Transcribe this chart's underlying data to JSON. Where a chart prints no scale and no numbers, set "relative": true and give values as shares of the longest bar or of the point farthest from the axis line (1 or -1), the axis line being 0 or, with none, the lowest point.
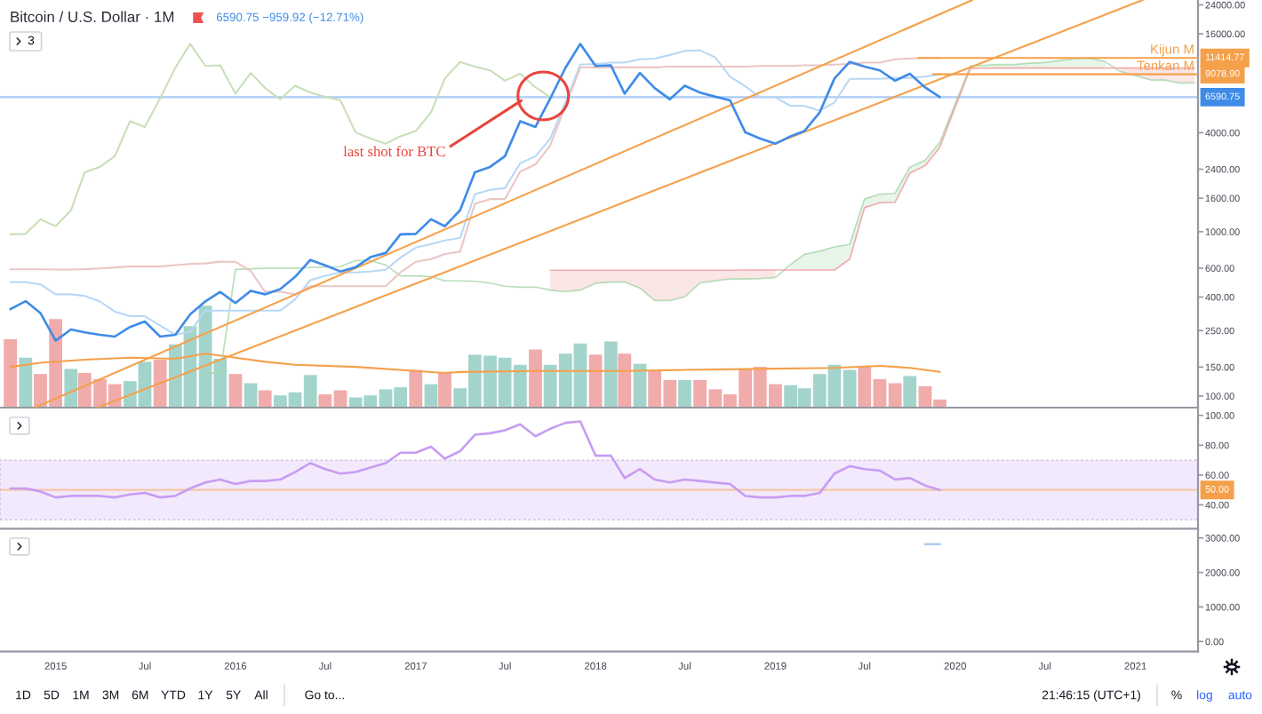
{
  "chart_data": [
    {
      "type": "line",
      "title": "Bitcoin / U.S. Dollar · 1M",
      "subtitle": "6590.75 −959.92 (−12.71%)",
      "annotations": [
        "3",
        {
          "text": "last shot for BTC",
          "x": "2017-08-03",
          "y": 6270
        }
      ],
      "log": true,
      "xlim": [
        "2014-09-10",
        "2021-05-08"
      ],
      "ylim": [
        85,
        25700
      ],
      "yticks": [
        {
          "value": 100,
          "label": "100.00"
        },
        {
          "value": 150,
          "label": "150.00"
        },
        {
          "value": 250,
          "label": "250.00"
        },
        {
          "value": 400,
          "label": "400.00"
        },
        {
          "value": 600,
          "label": "600.00"
        },
        {
          "value": 1000,
          "label": "1000.00"
        },
        {
          "value": 1600,
          "label": "1600.00"
        },
        {
          "value": 2400,
          "label": "2400.00"
        },
        {
          "value": 4000,
          "label": "4000.00"
        },
        {
          "value": 16000,
          "label": "16000.00"
        },
        {
          "value": 24000,
          "label": "24000.00"
        }
      ],
      "tick_labels": "y",
      "legend": "top right",
      "ref_lines": [
        {
          "axis": "y",
          "value": 6590.75,
          "label": "6590.75",
          "color": "#3f8be8"
        }
      ],
      "x": [
        "2014-10",
        "2014-11",
        "2014-12",
        "2015-01",
        "2015-02",
        "2015-03",
        "2015-04",
        "2015-05",
        "2015-06",
        "2015-07",
        "2015-08",
        "2015-09",
        "2015-10",
        "2015-11",
        "2015-12",
        "2016-01",
        "2016-02",
        "2016-03",
        "2016-04",
        "2016-05",
        "2016-06",
        "2016-07",
        "2016-08",
        "2016-09",
        "2016-10",
        "2016-11",
        "2016-12",
        "2017-01",
        "2017-02",
        "2017-03",
        "2017-04",
        "2017-05",
        "2017-06",
        "2017-07",
        "2017-08",
        "2017-09",
        "2017-10",
        "2017-11",
        "2017-12",
        "2018-01",
        "2018-02",
        "2018-03",
        "2018-04",
        "2018-05",
        "2018-06",
        "2018-07",
        "2018-08",
        "2018-09",
        "2018-10",
        "2018-11",
        "2018-12",
        "2019-01",
        "2019-02",
        "2019-03",
        "2019-04",
        "2019-05",
        "2019-06",
        "2019-07",
        "2019-08",
        "2019-09",
        "2019-10",
        "2019-11",
        "2019-12"
      ],
      "series": [
        {
          "color": "#3f8be8",
          "values": [
            338,
            378,
            320,
            217,
            254,
            244,
            236,
            230,
            263,
            284,
            230,
            236,
            314,
            377,
            430,
            368,
            437,
            416,
            448,
            531,
            673,
            624,
            573,
            608,
            700,
            742,
            964,
            970,
            1190,
            1080,
            1350,
            2300,
            2480,
            2880,
            4700,
            4340,
            6470,
            9950,
            13900,
            10200,
            10300,
            6920,
            9250,
            7490,
            6390,
            7730,
            7030,
            6630,
            6300,
            4020,
            3690,
            3430,
            3810,
            4100,
            5320,
            8560,
            10800,
            10100,
            9590,
            8290,
            9150,
            7550,
            6590.75
          ]
        },
        {
          "color": "#a5d6a7",
          "x": [
            "2015-11",
            "2015-12",
            "2016-01",
            "2016-02",
            "2016-03",
            "2016-04",
            "2016-05",
            "2016-06",
            "2016-07",
            "2016-08",
            "2016-09",
            "2016-10",
            "2016-11",
            "2016-12",
            "2017-01",
            "2017-02",
            "2017-03",
            "2017-04",
            "2017-05",
            "2017-06",
            "2017-07",
            "2017-08",
            "2017-09",
            "2017-10",
            "2017-11",
            "2017-12",
            "2018-01",
            "2018-02",
            "2018-03",
            "2018-04",
            "2018-05",
            "2018-06",
            "2018-07",
            "2018-08",
            "2018-09",
            "2018-10",
            "2018-11",
            "2018-12",
            "2019-01",
            "2019-02",
            "2019-03",
            "2019-04",
            "2019-05",
            "2019-06",
            "2019-07",
            "2019-08",
            "2019-09",
            "2019-10",
            "2019-11",
            "2019-12",
            "2020-01",
            "2020-02",
            "2020-03",
            "2020-04",
            "2020-05",
            "2020-06",
            "2020-07",
            "2020-08",
            "2020-09",
            "2020-10",
            "2020-11",
            "2020-12",
            "2021-01",
            "2021-02",
            "2021-03",
            "2021-04",
            "2021-05"
          ],
          "values": [
            138,
            138,
            590,
            595,
            599,
            599,
            599,
            605,
            610,
            613,
            668,
            667,
            627,
            539,
            539,
            533,
            502,
            502,
            499,
            487,
            466,
            460,
            460,
            441,
            431,
            441,
            486,
            494,
            494,
            454,
            381,
            381,
            402,
            487,
            503,
            516,
            516,
            519,
            527,
            631,
            728,
            761,
            808,
            836,
            1580,
            1690,
            1710,
            2470,
            2720,
            3510,
            5980,
            10200,
            10300,
            10400,
            10400,
            10600,
            10700,
            11000,
            11300,
            11400,
            10800,
            9450,
            8910,
            8380,
            8390,
            8020,
            8050
          ],
          "lower": [
            null,
            null,
            null,
            null,
            null,
            null,
            null,
            null,
            null,
            null,
            null,
            null,
            null,
            null,
            null,
            null,
            null,
            null,
            null,
            null,
            null,
            null,
            null,
            null,
            null,
            null,
            null,
            null,
            null,
            null,
            null,
            null,
            null,
            null,
            null,
            null,
            null,
            null,
            null,
            585,
            585,
            585,
            585,
            681,
            1400,
            1500,
            1510,
            2270,
            2520,
            3270,
            5730,
            9870,
            9890,
            9910,
            9910,
            9910,
            9910,
            9910,
            9910,
            9910,
            9910,
            null,
            null,
            null,
            null,
            null,
            null
          ],
          "upper": [
            null,
            null,
            null,
            null,
            null,
            null,
            null,
            null,
            null,
            null,
            null,
            null,
            null,
            null,
            null,
            null,
            null,
            null,
            null,
            null,
            null,
            null,
            null,
            null,
            null,
            null,
            null,
            null,
            null,
            null,
            null,
            null,
            null,
            null,
            null,
            null,
            null,
            null,
            null,
            631,
            728,
            761,
            808,
            836,
            1580,
            1690,
            1710,
            2470,
            2720,
            3510,
            5980,
            10200,
            10300,
            10400,
            10400,
            10600,
            10700,
            11000,
            11300,
            11400,
            10800,
            null,
            null,
            null,
            null,
            null,
            null
          ]
        },
        {
          "color": "#ef9a9a",
          "x": [
            "2017-10",
            "2017-11",
            "2017-12",
            "2018-01",
            "2018-02",
            "2018-03",
            "2018-04",
            "2018-05",
            "2018-06",
            "2018-07",
            "2018-08",
            "2018-09",
            "2018-10",
            "2018-11",
            "2018-12",
            "2019-01",
            "2019-02",
            "2019-03",
            "2019-04",
            "2019-05",
            "2019-06",
            "2019-07",
            "2019-08",
            "2019-09",
            "2019-10",
            "2019-11",
            "2019-12",
            "2020-01",
            "2020-02",
            "2020-03",
            "2020-04",
            "2020-05",
            "2020-06",
            "2020-07",
            "2020-08",
            "2020-09",
            "2020-10",
            "2020-11",
            "2020-12",
            "2021-01",
            "2021-02",
            "2021-03",
            "2021-04",
            "2021-05"
          ],
          "values": [
            583,
            583,
            583,
            583,
            583,
            583,
            583,
            583,
            583,
            583,
            583,
            583,
            583,
            585,
            585,
            585,
            585,
            585,
            585,
            585,
            681,
            1400,
            1500,
            1510,
            2270,
            2520,
            3270,
            5730,
            9870,
            9890,
            9910,
            9910,
            9910,
            9910,
            9910,
            9910,
            9910,
            9910,
            9910,
            9910,
            9910,
            9910,
            9910,
            9910
          ],
          "lower": [
            441,
            431,
            441,
            486,
            494,
            494,
            454,
            381,
            381,
            402,
            487,
            503,
            516,
            516,
            519,
            527,
            null,
            null,
            null,
            null,
            null,
            null,
            null,
            null,
            null,
            null,
            null,
            null,
            null,
            null,
            null,
            null,
            null,
            null,
            null,
            null,
            null,
            null,
            9450,
            8910,
            8380,
            8390,
            8020,
            8050
          ],
          "upper": [
            583,
            583,
            583,
            583,
            583,
            583,
            583,
            583,
            583,
            583,
            583,
            583,
            583,
            585,
            585,
            585,
            null,
            null,
            null,
            null,
            null,
            null,
            null,
            null,
            null,
            null,
            null,
            null,
            null,
            null,
            null,
            null,
            null,
            null,
            null,
            null,
            null,
            null,
            9910,
            9910,
            9910,
            9910,
            9910,
            9910
          ]
        },
        {
          "color": "#c9dfb8",
          "x": [
            "2014-10",
            "2014-11",
            "2014-12",
            "2015-01",
            "2015-02",
            "2015-03",
            "2015-04",
            "2015-05",
            "2015-06",
            "2015-07",
            "2015-08",
            "2015-09",
            "2015-10",
            "2015-11",
            "2015-12",
            "2016-01",
            "2016-02",
            "2016-03",
            "2016-04",
            "2016-05",
            "2016-06",
            "2016-07",
            "2016-08",
            "2016-09",
            "2016-10",
            "2016-11",
            "2016-12",
            "2017-01",
            "2017-02",
            "2017-03",
            "2017-04",
            "2017-05",
            "2017-06",
            "2017-07",
            "2017-08",
            "2017-09",
            "2017-10"
          ],
          "values": [
            964,
            970,
            1190,
            1080,
            1350,
            2300,
            2480,
            2880,
            4700,
            4340,
            6470,
            9950,
            13900,
            10200,
            10300,
            6920,
            9250,
            7490,
            6390,
            7730,
            7030,
            6630,
            6300,
            4020,
            3690,
            3430,
            3810,
            4100,
            5320,
            8560,
            10800,
            10100,
            9590,
            8290,
            9150,
            7550,
            6590.75
          ]
        },
        {
          "color": "#b8d8f6",
          "values": [
            493,
            493,
            478,
            416,
            416,
            406,
            376,
            326,
            306,
            306,
            268,
            236,
            246,
            331,
            331,
            331,
            331,
            331,
            331,
            387,
            507,
            540,
            565,
            565,
            572,
            587,
            695,
            800,
            840,
            885,
            915,
            1690,
            1800,
            1840,
            2610,
            2870,
            3680,
            6150,
            10400,
            10500,
            10700,
            10700,
            11200,
            11300,
            11900,
            12600,
            12700,
            11500,
            8770,
            7680,
            6570,
            6570,
            5830,
            5830,
            5460,
            6120,
            8520,
            8520,
            8520,
            8620,
            8630,
            8790,
            9080
          ]
        },
        {
          "color": "#ecc5c5",
          "values": [
            590,
            590,
            590,
            588,
            588,
            591,
            598,
            606,
            614,
            614,
            614,
            626,
            636,
            641,
            657,
            656,
            576,
            431,
            431,
            416,
            466,
            466,
            466,
            466,
            466,
            466,
            566,
            656,
            681,
            731,
            756,
            1480,
            1580,
            1580,
            2320,
            2570,
            3350,
            5820,
            9980,
            10000,
            10000,
            10000,
            10000,
            10000,
            10100,
            10100,
            10100,
            10100,
            10100,
            10100,
            10200,
            10200,
            10200,
            10300,
            10300,
            10400,
            10500,
            10700,
            10700,
            11200,
            11300,
            11400,
            11400
          ]
        },
        {
          "color": "#f5a04a",
          "x": [
            "2014-11-20",
            "2020-02-05"
          ],
          "values": [
            85,
            25700
          ]
        },
        {
          "color": "#f5a04a",
          "x": [
            "2015-03-27",
            "2021-01-16"
          ],
          "values": [
            85,
            25700
          ]
        },
        {
          "name": "Kijun M",
          "color": "#f5a04a",
          "x": [
            "2019-10-18",
            "2021-05-08"
          ],
          "values": [
            11414.77,
            11414.77
          ],
          "value_labels": [
            null,
            "11414.77"
          ]
        },
        {
          "name": "Tenkan M",
          "color": "#f5a04a",
          "x": [
            "2019-11-17",
            "2021-05-08"
          ],
          "values": [
            9078.9,
            9078.9
          ],
          "value_labels": [
            null,
            "9078.90"
          ]
        }
      ]
    },
    {
      "type": "bar",
      "relative": true,
      "tick_labels": false,
      "xlim": [
        "2014-09-10",
        "2021-05-08"
      ],
      "series": [
        {
          "type": "bar",
          "x": [
            "2014-10",
            "2014-11",
            "2014-12",
            "2015-01",
            "2015-02",
            "2015-03",
            "2015-04",
            "2015-05",
            "2015-06",
            "2015-07",
            "2015-08",
            "2015-09",
            "2015-10",
            "2015-11",
            "2015-12",
            "2016-01",
            "2016-02",
            "2016-03",
            "2016-04",
            "2016-05",
            "2016-06",
            "2016-07",
            "2016-08",
            "2016-09",
            "2016-10",
            "2016-11",
            "2016-12",
            "2017-01",
            "2017-02",
            "2017-03",
            "2017-04",
            "2017-05",
            "2017-06",
            "2017-07",
            "2017-08",
            "2017-09",
            "2017-10",
            "2017-11",
            "2017-12",
            "2018-01",
            "2018-02",
            "2018-03",
            "2018-04",
            "2018-05",
            "2018-06",
            "2018-07",
            "2018-08",
            "2018-09",
            "2018-10",
            "2018-11",
            "2018-12",
            "2019-01",
            "2019-02",
            "2019-03",
            "2019-04",
            "2019-05",
            "2019-06",
            "2019-07",
            "2019-08",
            "2019-09",
            "2019-10",
            "2019-11",
            "2019-12"
          ],
          "values": [
            0.67,
            0.49,
            0.33,
            0.87,
            0.38,
            0.34,
            0.28,
            0.23,
            0.26,
            0.45,
            0.47,
            0.62,
            0.8,
            1,
            0.48,
            0.33,
            0.24,
            0.17,
            0.12,
            0.15,
            0.32,
            0.13,
            0.17,
            0.1,
            0.12,
            0.18,
            0.2,
            0.37,
            0.23,
            0.35,
            0.19,
            0.52,
            0.51,
            0.49,
            0.42,
            0.57,
            0.42,
            0.53,
            0.63,
            0.52,
            0.65,
            0.53,
            0.43,
            0.36,
            0.27,
            0.27,
            0.27,
            0.18,
            0.13,
            0.38,
            0.4,
            0.23,
            0.22,
            0.19,
            0.33,
            0.42,
            0.37,
            0.41,
            0.28,
            0.24,
            0.31,
            0.21,
            0.08
          ],
          "colors": [
            "#f0abab",
            "#a3d4cc",
            "#f0abab",
            "#f0abab",
            "#a3d4cc",
            "#f0abab",
            "#f0abab",
            "#f0abab",
            "#a3d4cc",
            "#a3d4cc",
            "#f0abab",
            "#a3d4cc",
            "#a3d4cc",
            "#a3d4cc",
            "#a3d4cc",
            "#f0abab",
            "#a3d4cc",
            "#f0abab",
            "#a3d4cc",
            "#a3d4cc",
            "#a3d4cc",
            "#f0abab",
            "#f0abab",
            "#a3d4cc",
            "#a3d4cc",
            "#a3d4cc",
            "#a3d4cc",
            "#f0abab",
            "#a3d4cc",
            "#f0abab",
            "#a3d4cc",
            "#a3d4cc",
            "#a3d4cc",
            "#a3d4cc",
            "#a3d4cc",
            "#f0abab",
            "#a3d4cc",
            "#a3d4cc",
            "#a3d4cc",
            "#f0abab",
            "#a3d4cc",
            "#f0abab",
            "#a3d4cc",
            "#f0abab",
            "#f0abab",
            "#a3d4cc",
            "#f0abab",
            "#f0abab",
            "#f0abab",
            "#f0abab",
            "#f0abab",
            "#f0abab",
            "#a3d4cc",
            "#a3d4cc",
            "#a3d4cc",
            "#a3d4cc",
            "#a3d4cc",
            "#f0abab",
            "#f0abab",
            "#f0abab",
            "#a3d4cc",
            "#f0abab",
            "#f0abab"
          ]
        },
        {
          "type": "line",
          "color": "#f5a04a",
          "x": [
            "2014-10",
            "2014-12",
            "2015-03",
            "2015-06",
            "2015-09",
            "2015-11",
            "2016-01",
            "2016-03",
            "2016-05",
            "2016-09",
            "2017-01",
            "2017-03",
            "2017-04",
            "2017-09",
            "2018-03",
            "2018-07",
            "2018-12",
            "2019-05",
            "2019-08",
            "2019-10",
            "2019-12"
          ],
          "values": [
            0.4,
            0.44,
            0.47,
            0.49,
            0.48,
            0.53,
            0.49,
            0.45,
            0.42,
            0.4,
            0.36,
            0.34,
            0.35,
            0.36,
            0.36,
            0.37,
            0.38,
            0.39,
            0.41,
            0.39,
            0.35
          ]
        }
      ]
    },
    {
      "type": "line",
      "xlim": [
        "2014-09-10",
        "2021-05-08"
      ],
      "ylim": [
        24,
        104
      ],
      "yticks": [
        {
          "value": 40,
          "label": "40.00"
        },
        {
          "value": 60,
          "label": "60.00"
        },
        {
          "value": 80,
          "label": "80.00"
        },
        {
          "value": 100,
          "label": "100.00"
        }
      ],
      "tick_labels": "y",
      "bands": [
        {
          "axis": "y",
          "from": 30,
          "to": 70,
          "color": "#f3e9fc"
        }
      ],
      "ref_lines": [
        {
          "axis": "y",
          "value": 50,
          "label": "50.00",
          "color": "#f5a04a"
        }
      ],
      "x": [
        "2014-10",
        "2014-11",
        "2014-12",
        "2015-01",
        "2015-02",
        "2015-03",
        "2015-04",
        "2015-05",
        "2015-06",
        "2015-07",
        "2015-08",
        "2015-09",
        "2015-10",
        "2015-11",
        "2015-12",
        "2016-01",
        "2016-02",
        "2016-03",
        "2016-04",
        "2016-05",
        "2016-06",
        "2016-07",
        "2016-08",
        "2016-09",
        "2016-10",
        "2016-11",
        "2016-12",
        "2017-01",
        "2017-02",
        "2017-03",
        "2017-04",
        "2017-05",
        "2017-06",
        "2017-07",
        "2017-08",
        "2017-09",
        "2017-10",
        "2017-11",
        "2017-12",
        "2018-01",
        "2018-02",
        "2018-03",
        "2018-04",
        "2018-05",
        "2018-06",
        "2018-07",
        "2018-08",
        "2018-09",
        "2018-10",
        "2018-11",
        "2018-12",
        "2019-01",
        "2019-02",
        "2019-03",
        "2019-04",
        "2019-05",
        "2019-06",
        "2019-07",
        "2019-08",
        "2019-09",
        "2019-10",
        "2019-11",
        "2019-12"
      ],
      "series": [
        {
          "color": "#c79df2",
          "values": [
            51,
            51,
            49,
            45,
            46,
            46,
            46,
            45,
            47,
            48,
            45,
            46,
            51,
            55,
            57,
            54,
            56,
            56,
            57,
            62,
            68,
            64,
            61,
            62,
            65,
            68,
            75,
            75,
            79,
            71,
            76,
            87,
            88,
            90,
            94,
            86,
            91,
            95,
            96,
            73,
            73,
            58,
            64,
            57,
            55,
            57,
            56,
            55,
            54,
            46,
            45,
            45,
            46,
            46,
            48,
            61,
            66,
            64,
            63,
            57,
            58,
            53,
            50
          ]
        }
      ]
    },
    {
      "type": "line",
      "xlim": [
        "2014-09-10",
        "2021-05-08"
      ],
      "ylim": [
        -290,
        3220
      ],
      "yticks": [
        {
          "value": 0,
          "label": "0.00"
        },
        {
          "value": 1000,
          "label": "1000.00"
        },
        {
          "value": 2000,
          "label": "2000.00"
        },
        {
          "value": 3000,
          "label": "3000.00"
        }
      ],
      "xticks": [
        {
          "value": "2015-01-01",
          "label": "2015"
        },
        {
          "value": "2015-07-01",
          "label": "Jul"
        },
        {
          "value": "2016-01-01",
          "label": "2016"
        },
        {
          "value": "2016-07-01",
          "label": "Jul"
        },
        {
          "value": "2017-01-01",
          "label": "2017"
        },
        {
          "value": "2017-07-01",
          "label": "Jul"
        },
        {
          "value": "2018-01-01",
          "label": "2018"
        },
        {
          "value": "2018-07-01",
          "label": "Jul"
        },
        {
          "value": "2019-01-01",
          "label": "2019"
        },
        {
          "value": "2019-07-01",
          "label": "Jul"
        },
        {
          "value": "2020-01-01",
          "label": "2020"
        },
        {
          "value": "2020-07-01",
          "label": "Jul"
        },
        {
          "value": "2021-01-01",
          "label": "2021"
        }
      ],
      "series": [
        {
          "color": "#a8cff2",
          "x": [
            "2019-11",
            "2019-12"
          ],
          "values": [
            2820,
            2820
          ]
        }
      ],
      "annotations": [
        "1D",
        "5D",
        "1M",
        "3M",
        "6M",
        "YTD",
        "1Y",
        "5Y",
        "All",
        "Go to...",
        "21:46:15 (UTC+1)",
        "%",
        "log",
        "auto"
      ]
    }
  ]
}
